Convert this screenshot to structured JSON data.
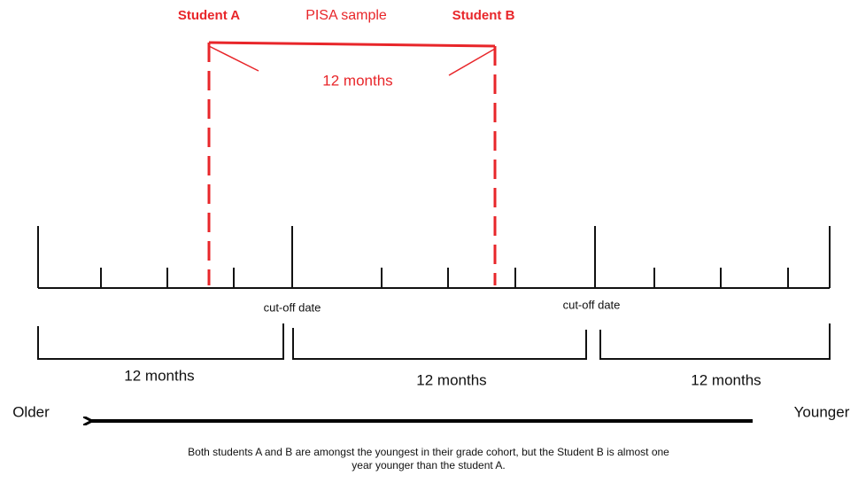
{
  "sample": {
    "student_a": "Student A",
    "label": "PISA sample",
    "student_b": "Student B",
    "span": "12 months"
  },
  "timeline": {
    "cutoffs": [
      "cut-off date",
      "cut-off date"
    ],
    "periods": [
      "12 months",
      "12 months",
      "12 months"
    ]
  },
  "direction": {
    "left": "Older",
    "right": "Younger"
  },
  "caption": [
    "Both students A and B are amongst the youngest in their grade cohort, but the Student B is almost one",
    "year younger than the student A."
  ]
}
